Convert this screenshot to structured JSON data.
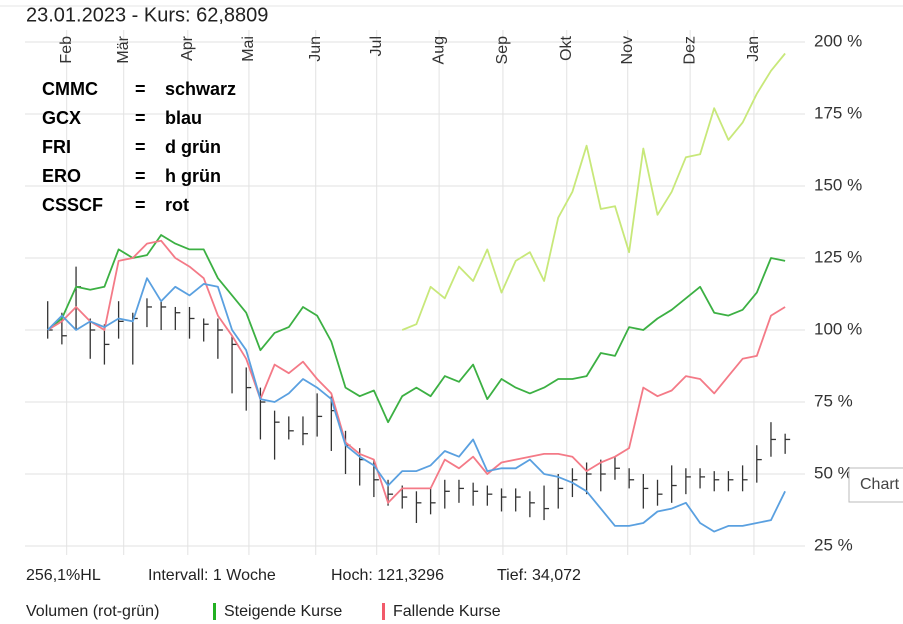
{
  "chart_data": {
    "type": "line",
    "title": "23.01.2023  -  Kurs: 62,8809",
    "x": [
      0,
      1,
      2,
      3,
      4,
      5,
      6,
      7,
      8,
      9,
      10,
      11,
      12,
      13,
      14,
      15,
      16,
      17,
      18,
      19,
      20,
      21,
      22,
      23,
      24,
      25,
      26,
      27,
      28,
      29,
      30,
      31,
      32,
      33,
      34,
      35,
      36,
      37,
      38,
      39,
      40,
      41,
      42,
      43,
      44,
      45,
      46,
      47,
      48,
      49,
      50,
      51,
      52
    ],
    "xlim": [
      -1.6,
      53.4
    ],
    "xticks": [
      {
        "value": 1.34,
        "label": "Feb"
      },
      {
        "value": 5.36,
        "label": "Mär"
      },
      {
        "value": 9.88,
        "label": "Apr"
      },
      {
        "value": 14.19,
        "label": "Mai"
      },
      {
        "value": 18.9,
        "label": "Jun"
      },
      {
        "value": 23.2,
        "label": "Jul"
      },
      {
        "value": 27.6,
        "label": "Aug"
      },
      {
        "value": 32.1,
        "label": "Sep"
      },
      {
        "value": 36.6,
        "label": "Okt"
      },
      {
        "value": 40.9,
        "label": "Nov"
      },
      {
        "value": 45.3,
        "label": "Dez"
      },
      {
        "value": 49.8,
        "label": "Jan"
      }
    ],
    "ylim": [
      19.8,
      205.2
    ],
    "yticks": [
      {
        "value": 25,
        "label": "25 %"
      },
      {
        "value": 50,
        "label": "50 %"
      },
      {
        "value": 75,
        "label": "75 %"
      },
      {
        "value": 100,
        "label": "100 %"
      },
      {
        "value": 125,
        "label": "125 %"
      },
      {
        "value": 150,
        "label": "150 %"
      },
      {
        "value": 175,
        "label": "175 %"
      },
      {
        "value": 200,
        "label": "200 %"
      }
    ],
    "grid": true,
    "series": [
      {
        "color": "#3cb043",
        "values": [
          100,
          104,
          115,
          114,
          115,
          128,
          125,
          126,
          133,
          130,
          128,
          128,
          118,
          112,
          106,
          93,
          99,
          101,
          108,
          105,
          96,
          80,
          77,
          79,
          68,
          77,
          80,
          77,
          84,
          82,
          88,
          76,
          83,
          80,
          78,
          80,
          83,
          83,
          84,
          92,
          91,
          101,
          100,
          104,
          107,
          111,
          115,
          106,
          105,
          107,
          113,
          125,
          124
        ]
      },
      {
        "color": "#f47a87",
        "values": [
          100,
          103,
          108,
          103,
          100,
          124,
          125,
          130,
          131,
          125,
          122,
          118,
          105,
          98,
          90,
          76,
          88,
          85,
          89,
          83,
          78,
          61,
          57,
          55,
          40,
          45,
          45,
          45,
          55,
          52,
          56,
          50,
          54,
          55,
          56,
          57,
          57,
          56,
          51,
          54,
          56,
          59,
          80,
          77,
          79,
          84,
          83,
          78,
          84,
          90,
          91,
          105,
          108
        ]
      },
      {
        "color": "#5aa0e0",
        "values": [
          100,
          105,
          100,
          103,
          101,
          104,
          103,
          118,
          110,
          115,
          112,
          116,
          115,
          100,
          93,
          76,
          75,
          78,
          83,
          80,
          76,
          60,
          56,
          53,
          46,
          51,
          51,
          53,
          58,
          56,
          62,
          51,
          52,
          52,
          55,
          50,
          49,
          47,
          44,
          38,
          32,
          32,
          33,
          37,
          38,
          40,
          33,
          30,
          32,
          32,
          33,
          34,
          44
        ]
      },
      {
        "color": "#c8e87a",
        "values": [
          null,
          null,
          null,
          null,
          null,
          null,
          null,
          null,
          null,
          null,
          null,
          null,
          null,
          null,
          null,
          null,
          null,
          null,
          null,
          null,
          null,
          null,
          null,
          null,
          null,
          100,
          102,
          115,
          111,
          122,
          117,
          128,
          113,
          124,
          127,
          117,
          139,
          148,
          164,
          142,
          143,
          127,
          163,
          140,
          148,
          160,
          161,
          177,
          166,
          172,
          182,
          190,
          196
        ]
      }
    ],
    "ohlc": {
      "color": "#333333",
      "close": [
        100,
        98,
        115,
        100,
        95,
        103,
        104,
        108,
        108,
        106,
        104,
        102,
        100,
        95,
        80,
        75,
        68,
        65,
        64,
        70,
        72,
        60,
        55,
        48,
        43,
        42,
        40,
        40,
        44,
        45,
        44,
        43,
        42,
        42,
        40,
        38,
        45,
        48,
        50,
        50,
        52,
        48,
        45,
        43,
        46,
        49,
        49,
        48,
        48,
        48,
        55,
        62,
        62
      ],
      "high": [
        110,
        106,
        122,
        104,
        102,
        110,
        106,
        111,
        110,
        108,
        108,
        104,
        104,
        98,
        87,
        80,
        72,
        70,
        70,
        78,
        77,
        65,
        59,
        55,
        48,
        46,
        44,
        45,
        48,
        48,
        47,
        46,
        45,
        45,
        44,
        46,
        50,
        52,
        54,
        55,
        56,
        52,
        50,
        48,
        53,
        52,
        52,
        51,
        51,
        53,
        60,
        68,
        64
      ],
      "low": [
        97,
        95,
        100,
        90,
        88,
        97,
        88,
        101,
        100,
        100,
        97,
        96,
        90,
        78,
        72,
        62,
        55,
        62,
        60,
        63,
        58,
        50,
        46,
        42,
        39,
        38,
        33,
        36,
        38,
        40,
        39,
        39,
        37,
        37,
        35,
        34,
        38,
        42,
        43,
        44,
        48,
        45,
        38,
        39,
        40,
        43,
        45,
        44,
        44,
        44,
        47,
        56,
        57
      ]
    },
    "annotations": [
      [
        "CMMC",
        "=",
        "schwarz"
      ],
      [
        "GCX",
        "=",
        "blau"
      ],
      [
        "FRI",
        "=",
        "d grün"
      ],
      [
        "ERO",
        "=",
        "h grün"
      ],
      [
        "CSSCF",
        "=",
        "rot"
      ]
    ],
    "stats": [
      "256,1%HL",
      "Intervall: 1 Woche",
      "Hoch: 121,3296",
      "Tief: 34,072"
    ],
    "volume_legend": {
      "title": "Volumen (rot-grün)",
      "items": [
        {
          "label": "Steigende Kurse",
          "color": "#22b022"
        },
        {
          "label": "Fallende Kurse",
          "color": "#f25a6a"
        }
      ]
    },
    "tooltip": "Chart"
  }
}
